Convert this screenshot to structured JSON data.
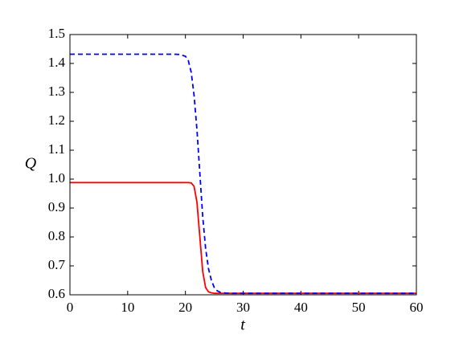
{
  "chart_data": {
    "type": "line",
    "xlabel": "t",
    "ylabel": "Q",
    "x": [
      0,
      5,
      10,
      15,
      18,
      19,
      20,
      20.5,
      21,
      21.5,
      22,
      22.5,
      23,
      23.5,
      24,
      24.5,
      25,
      25.5,
      26,
      27,
      28,
      30,
      35,
      40,
      45,
      50,
      55,
      60
    ],
    "series": [
      {
        "color": "#ff0000",
        "linestyle": "solid",
        "values": [
          0.988,
          0.988,
          0.988,
          0.988,
          0.988,
          0.988,
          0.988,
          0.988,
          0.987,
          0.975,
          0.92,
          0.8,
          0.68,
          0.625,
          0.61,
          0.607,
          0.605,
          0.605,
          0.605,
          0.605,
          0.605,
          0.605,
          0.605,
          0.605,
          0.605,
          0.605,
          0.605,
          0.605
        ]
      },
      {
        "color": "#0000ff",
        "linestyle": "dashed",
        "values": [
          1.432,
          1.432,
          1.432,
          1.432,
          1.432,
          1.431,
          1.425,
          1.41,
          1.37,
          1.29,
          1.17,
          1.02,
          0.87,
          0.76,
          0.69,
          0.65,
          0.625,
          0.614,
          0.609,
          0.606,
          0.605,
          0.605,
          0.605,
          0.605,
          0.605,
          0.605,
          0.605,
          0.605
        ]
      }
    ],
    "xlim": [
      0,
      60
    ],
    "xticks": [
      0,
      10,
      20,
      30,
      40,
      50,
      60
    ],
    "ylim": [
      0.6,
      1.5
    ],
    "yticks": [
      0.6,
      0.7,
      0.8,
      0.9,
      {
        "value": 1,
        "label": "1.0"
      },
      1.1,
      1.2,
      1.3,
      1.4,
      1.5
    ],
    "grid": false
  }
}
